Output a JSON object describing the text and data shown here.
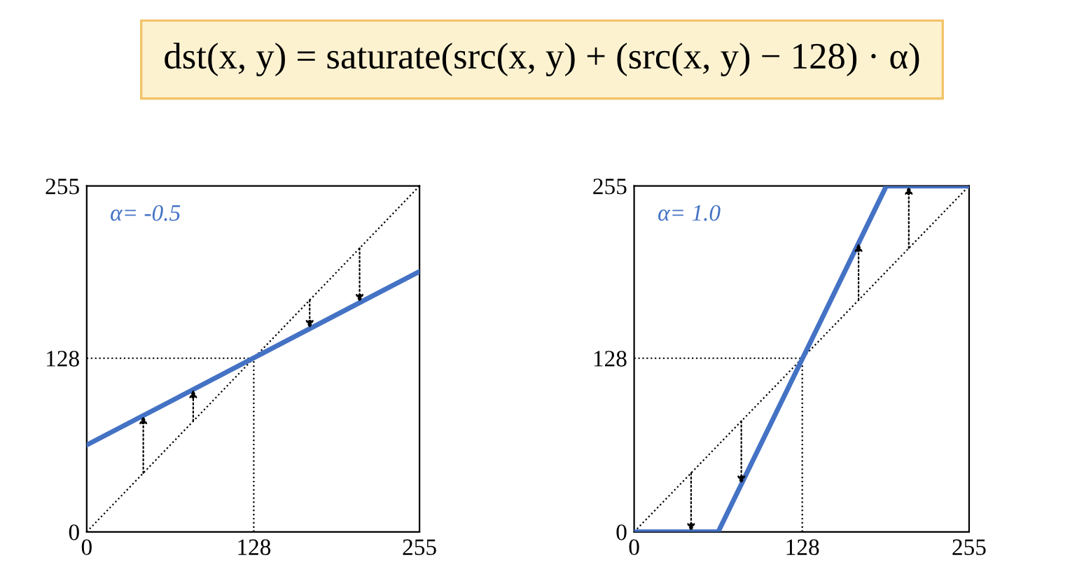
{
  "chart_data": [
    {
      "type": "other",
      "title": "dst(x, y) = saturate(src(x, y) + (src(x, y) − 128) · α)"
    },
    {
      "type": "line",
      "xlim": [
        0,
        255
      ],
      "ylim": [
        0,
        255
      ],
      "xticks": [
        0,
        128,
        255
      ],
      "yticks": [
        0,
        128,
        255
      ],
      "grid": false,
      "legend": false,
      "marker": "none",
      "series": [
        {
          "x": [
            0,
            255
          ],
          "values": [
            0,
            255
          ],
          "color": "#000000",
          "line_style": "dotted"
        },
        {
          "x": [
            0,
            128
          ],
          "values": [
            128,
            128
          ],
          "color": "#000000",
          "line_style": "dotted"
        },
        {
          "x": [
            128,
            128
          ],
          "values": [
            0,
            128
          ],
          "color": "#000000",
          "line_style": "dotted"
        },
        {
          "x": [
            0,
            255
          ],
          "values": [
            64,
            192
          ],
          "color": "#4472c4",
          "line_style": "solid"
        }
      ],
      "annotations": [
        "α= -0.5"
      ]
    },
    {
      "type": "line",
      "xlim": [
        0,
        255
      ],
      "ylim": [
        0,
        255
      ],
      "xticks": [
        0,
        128,
        255
      ],
      "yticks": [
        0,
        128,
        255
      ],
      "grid": false,
      "legend": false,
      "marker": "none",
      "series": [
        {
          "x": [
            0,
            255
          ],
          "values": [
            0,
            255
          ],
          "color": "#000000",
          "line_style": "dotted"
        },
        {
          "x": [
            0,
            128
          ],
          "values": [
            128,
            128
          ],
          "color": "#000000",
          "line_style": "dotted"
        },
        {
          "x": [
            128,
            128
          ],
          "values": [
            0,
            128
          ],
          "color": "#000000",
          "line_style": "dotted"
        },
        {
          "x": [
            0,
            64,
            192,
            255
          ],
          "values": [
            0,
            0,
            255,
            255
          ],
          "color": "#4472c4",
          "line_style": "solid"
        }
      ],
      "annotations": [
        "α= 1.0"
      ]
    }
  ]
}
